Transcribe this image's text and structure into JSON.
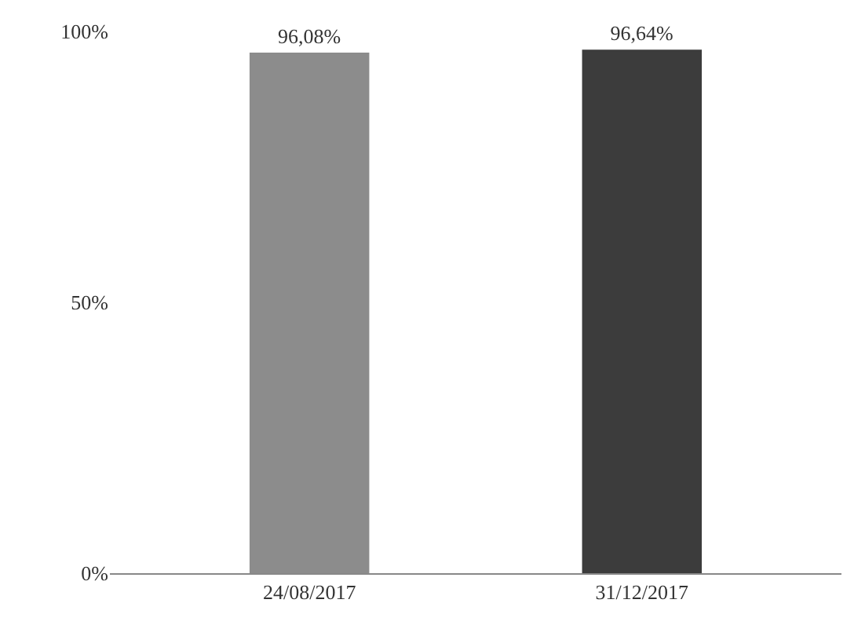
{
  "chart_data": {
    "type": "bar",
    "categories": [
      "24/08/2017",
      "31/12/2017"
    ],
    "values": [
      96.08,
      96.64
    ],
    "colors": [
      "#8c8c8c",
      "#3c3c3c"
    ],
    "value_labels": [
      "96,08%",
      "96,64%"
    ],
    "ylim": [
      0,
      100
    ],
    "yticks": [
      {
        "value": 0,
        "label": "0%"
      },
      {
        "value": 50,
        "label": "50%"
      },
      {
        "value": 100,
        "label": "100%"
      }
    ]
  }
}
